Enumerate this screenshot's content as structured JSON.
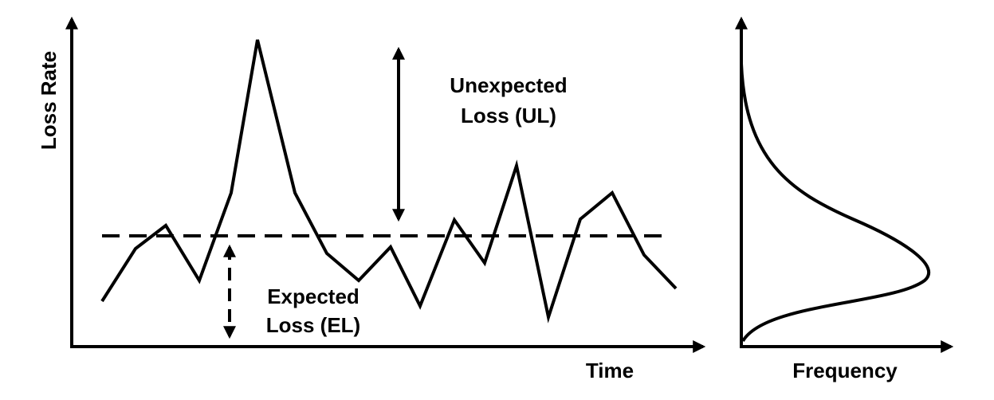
{
  "axes": {
    "y_label": "Loss Rate",
    "x_label": "Time",
    "frequency_label": "Frequency"
  },
  "annotations": {
    "unexpected_loss": [
      "Unexpected",
      "Loss (UL)"
    ],
    "expected_loss": [
      "Expected",
      "Loss (EL)"
    ]
  }
}
